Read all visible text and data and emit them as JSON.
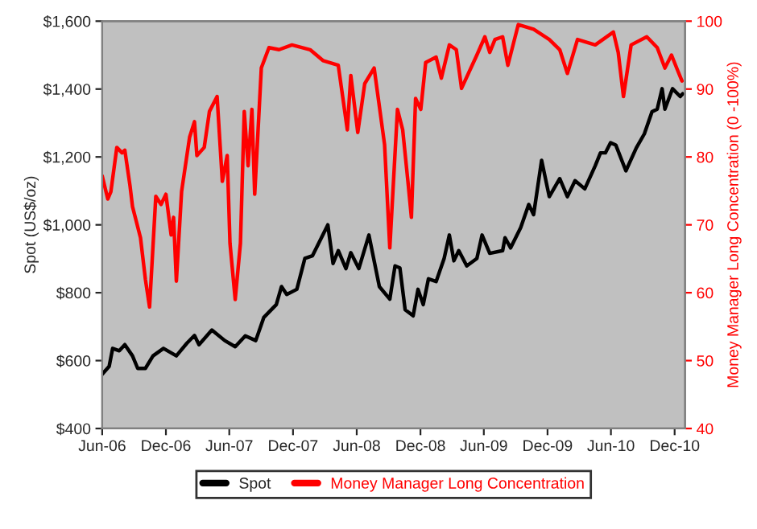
{
  "chart_data": {
    "type": "line",
    "ylabel": "Spot (US$/oz)",
    "y2label": "Money Manager Long Concentration (0 -100%)",
    "xlim": [
      "2006-06-01",
      "2010-12-31"
    ],
    "xticks": [
      {
        "value": "2006-06-01",
        "label": "Jun-06"
      },
      {
        "value": "2006-12-01",
        "label": "Dec-06"
      },
      {
        "value": "2007-06-01",
        "label": "Jun-07"
      },
      {
        "value": "2007-12-01",
        "label": "Dec-07"
      },
      {
        "value": "2008-06-01",
        "label": "Jun-08"
      },
      {
        "value": "2008-12-01",
        "label": "Dec-08"
      },
      {
        "value": "2009-06-01",
        "label": "Jun-09"
      },
      {
        "value": "2009-12-01",
        "label": "Dec-09"
      },
      {
        "value": "2010-06-01",
        "label": "Jun-10"
      },
      {
        "value": "2010-12-01",
        "label": "Dec-10"
      }
    ],
    "ylim": [
      400,
      1600
    ],
    "yticks": [
      {
        "value": 400,
        "label": "$400"
      },
      {
        "value": 600,
        "label": "$600"
      },
      {
        "value": 800,
        "label": "$800"
      },
      {
        "value": 1000,
        "label": "$1,000"
      },
      {
        "value": 1200,
        "label": "$1,200"
      },
      {
        "value": 1400,
        "label": "$1,400"
      },
      {
        "value": 1600,
        "label": "$1,600"
      }
    ],
    "y2lim": [
      40,
      100
    ],
    "y2ticks": [
      40,
      50,
      60,
      70,
      80,
      90,
      100
    ],
    "grid": false,
    "legend": "bottom",
    "line_style": "solid",
    "marker": "none",
    "series": [
      {
        "name": "Spot",
        "color": "#000000",
        "x": [
          "2006-06-01",
          "2006-06-21",
          "2006-07-01",
          "2006-07-20",
          "2006-08-05",
          "2006-08-27",
          "2006-09-11",
          "2006-10-03",
          "2006-10-25",
          "2006-11-24",
          "2006-12-31",
          "2007-01-30",
          "2007-02-21",
          "2007-03-06",
          "2007-04-12",
          "2007-05-19",
          "2007-06-18",
          "2007-07-17",
          "2007-08-16",
          "2007-09-08",
          "2007-10-14",
          "2007-10-29",
          "2007-11-13",
          "2007-12-12",
          "2008-01-04",
          "2008-01-26",
          "2008-03-10",
          "2008-03-25",
          "2008-04-09",
          "2008-05-01",
          "2008-05-15",
          "2008-06-07",
          "2008-07-06",
          "2008-08-05",
          "2008-09-04",
          "2008-09-19",
          "2008-10-03",
          "2008-10-18",
          "2008-11-10",
          "2008-11-24",
          "2008-12-09",
          "2008-12-24",
          "2009-01-15",
          "2009-02-07",
          "2009-02-22",
          "2009-03-07",
          "2009-03-21",
          "2009-04-13",
          "2009-05-12",
          "2009-05-27",
          "2009-06-18",
          "2009-07-25",
          "2009-08-01",
          "2009-08-17",
          "2009-09-15",
          "2009-10-08",
          "2009-10-22",
          "2009-11-14",
          "2009-12-06",
          "2010-01-05",
          "2010-01-27",
          "2010-02-18",
          "2010-03-18",
          "2010-04-17",
          "2010-05-02",
          "2010-05-16",
          "2010-05-31",
          "2010-06-15",
          "2010-07-14",
          "2010-08-13",
          "2010-09-05",
          "2010-09-27",
          "2010-10-12",
          "2010-10-26",
          "2010-11-03",
          "2010-11-25",
          "2010-12-17",
          "2010-12-24"
        ],
        "values": [
          560,
          583,
          636,
          629,
          647,
          614,
          577,
          577,
          614,
          636,
          614,
          651,
          674,
          647,
          690,
          659,
          641,
          673,
          659,
          727,
          765,
          818,
          795,
          810,
          901,
          909,
          1000,
          886,
          924,
          871,
          918,
          871,
          970,
          818,
          781,
          879,
          873,
          750,
          732,
          810,
          765,
          841,
          833,
          901,
          970,
          894,
          924,
          879,
          901,
          970,
          916,
          924,
          962,
          932,
          992,
          1060,
          1030,
          1190,
          1083,
          1136,
          1083,
          1130,
          1106,
          1174,
          1212,
          1212,
          1242,
          1235,
          1159,
          1227,
          1268,
          1333,
          1341,
          1401,
          1341,
          1401,
          1378,
          1386
        ]
      },
      {
        "name": "Money Manager Long Concentration",
        "color": "#ff0000",
        "axis": "y2",
        "x": [
          "2006-06-01",
          "2006-06-17",
          "2006-06-26",
          "2006-07-13",
          "2006-07-28",
          "2006-08-05",
          "2006-08-20",
          "2006-08-27",
          "2006-09-04",
          "2006-09-19",
          "2006-10-03",
          "2006-10-15",
          "2006-11-02",
          "2006-11-17",
          "2006-12-01",
          "2006-12-16",
          "2006-12-23",
          "2006-12-31",
          "2007-01-15",
          "2007-02-07",
          "2007-02-21",
          "2007-02-28",
          "2007-03-21",
          "2007-04-05",
          "2007-04-27",
          "2007-05-12",
          "2007-05-26",
          "2007-06-03",
          "2007-06-18",
          "2007-07-03",
          "2007-07-14",
          "2007-07-25",
          "2007-08-05",
          "2007-08-13",
          "2007-09-01",
          "2007-09-23",
          "2007-10-22",
          "2007-11-28",
          "2008-01-19",
          "2008-02-25",
          "2008-04-09",
          "2008-05-05",
          "2008-05-15",
          "2008-06-04",
          "2008-06-24",
          "2008-07-21",
          "2008-08-20",
          "2008-09-04",
          "2008-09-26",
          "2008-10-11",
          "2008-10-26",
          "2008-11-05",
          "2008-11-17",
          "2008-12-02",
          "2008-12-16",
          "2009-01-15",
          "2009-01-30",
          "2009-02-22",
          "2009-03-14",
          "2009-03-29",
          "2009-05-12",
          "2009-06-04",
          "2009-06-18",
          "2009-07-03",
          "2009-07-25",
          "2009-08-09",
          "2009-09-08",
          "2009-10-22",
          "2009-12-06",
          "2010-01-05",
          "2010-01-27",
          "2010-02-25",
          "2010-04-17",
          "2010-06-08",
          "2010-06-22",
          "2010-07-07",
          "2010-07-29",
          "2010-09-12",
          "2010-10-12",
          "2010-11-03",
          "2010-11-22",
          "2010-12-10",
          "2010-12-22"
        ],
        "values": [
          77.2,
          73.8,
          74.9,
          81.4,
          80.6,
          81.0,
          75.7,
          72.7,
          71.1,
          68.1,
          62.0,
          57.9,
          74.2,
          73.0,
          74.5,
          68.5,
          71.1,
          61.7,
          74.9,
          82.9,
          85.2,
          80.2,
          81.4,
          86.7,
          88.9,
          76.4,
          80.2,
          67.3,
          59.0,
          67.3,
          86.7,
          78.7,
          87.0,
          74.5,
          93.1,
          96.1,
          95.8,
          96.5,
          95.8,
          94.2,
          93.5,
          84.0,
          92.0,
          83.6,
          90.8,
          93.1,
          81.8,
          66.6,
          87.0,
          84.0,
          76.4,
          71.1,
          88.6,
          87.0,
          93.9,
          94.7,
          91.6,
          96.5,
          95.8,
          90.1,
          95.0,
          97.7,
          95.4,
          97.3,
          97.7,
          93.5,
          99.5,
          98.8,
          97.3,
          95.8,
          92.3,
          97.3,
          96.5,
          98.4,
          95.4,
          88.9,
          96.5,
          97.7,
          96.1,
          93.1,
          95.0,
          92.7,
          91.2
        ]
      }
    ]
  }
}
